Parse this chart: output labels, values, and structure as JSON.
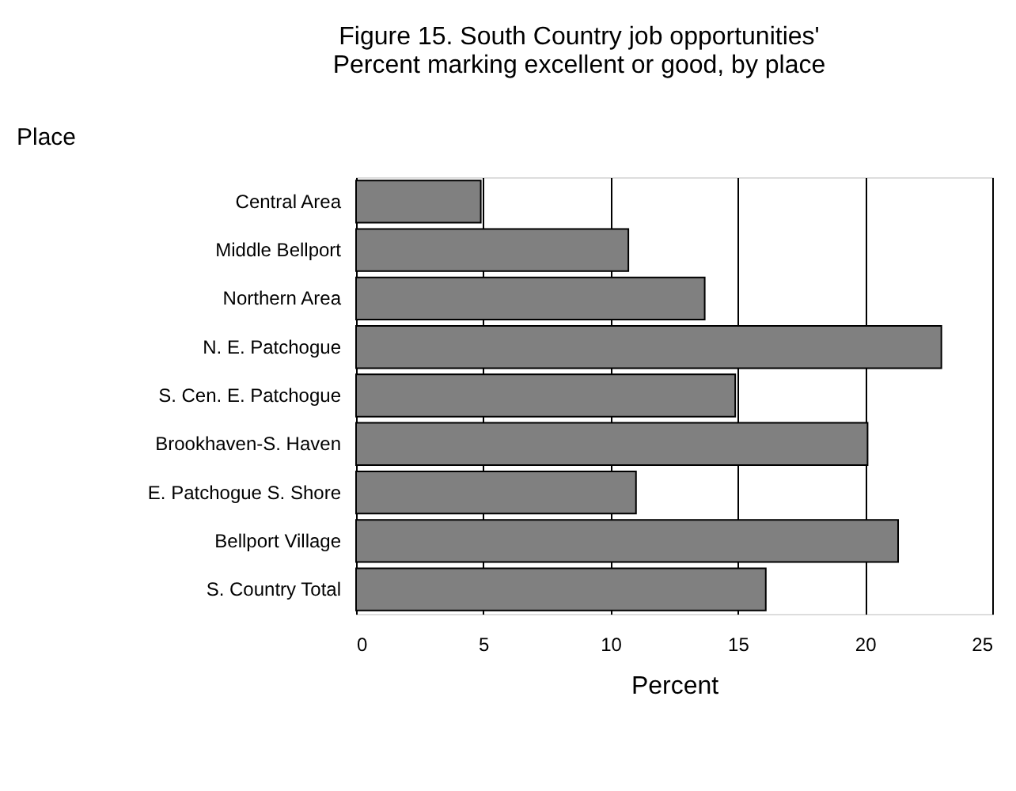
{
  "chart_data": {
    "type": "bar",
    "orientation": "horizontal",
    "title": [
      "Figure 15.  South Country job opportunities'",
      "Percent marking excellent or good, by place"
    ],
    "ylabel": "Place",
    "xlabel": "Percent",
    "categories": [
      "Central Area",
      "Middle Bellport",
      "Northern Area",
      "N. E. Patchogue",
      "S. Cen. E. Patchogue",
      "Brookhaven-S. Haven",
      "E. Patchogue S. Shore",
      "Bellport Village",
      "S. Country Total"
    ],
    "values": [
      4.9,
      10.7,
      13.7,
      23.0,
      14.9,
      20.1,
      11.0,
      21.3,
      16.1
    ],
    "color": "#808080",
    "xlim": [
      0,
      25
    ],
    "xticks": [
      0,
      5,
      10,
      15,
      20,
      25
    ],
    "grid": "x"
  }
}
